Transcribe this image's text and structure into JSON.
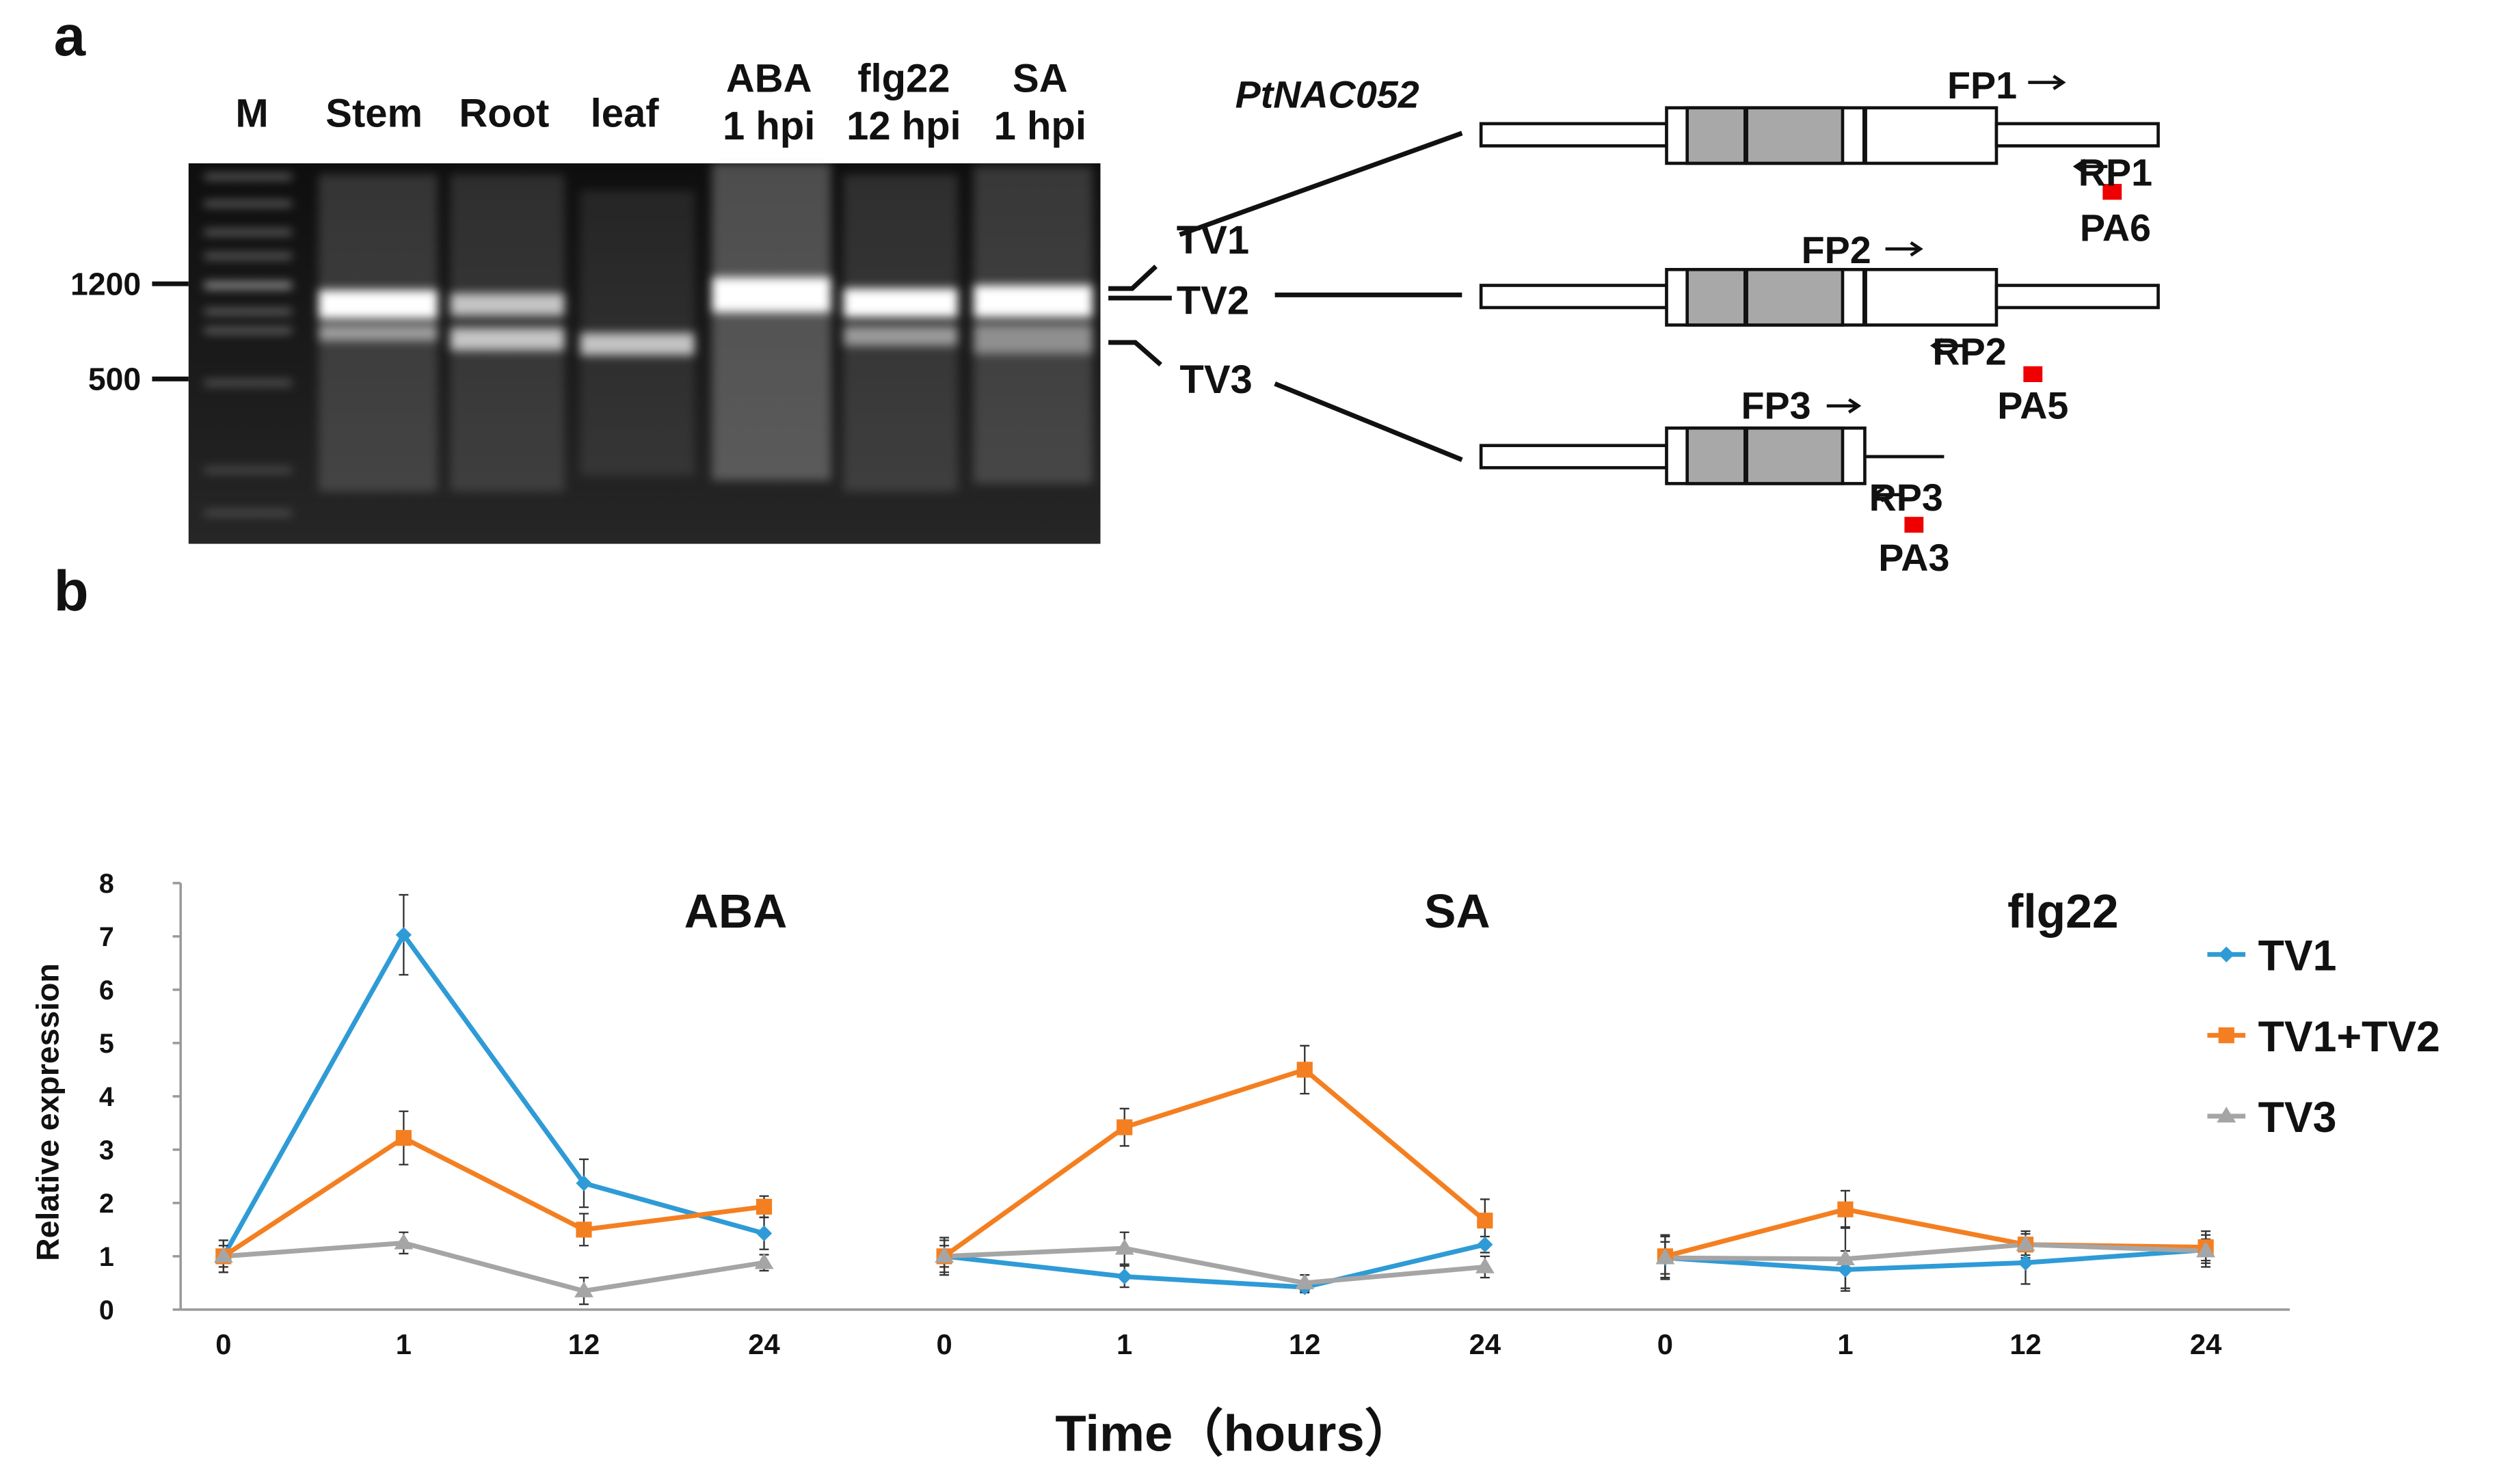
{
  "panel_labels": [
    "a",
    "b"
  ],
  "gel": {
    "lanes": [
      [
        "M"
      ],
      [
        "Stem"
      ],
      [
        "Root"
      ],
      [
        "leaf"
      ],
      [
        "ABA",
        "1 hpi"
      ],
      [
        "flg22",
        "12 hpi"
      ],
      [
        "SA",
        "1 hpi"
      ]
    ],
    "markers": [
      "1200",
      "500"
    ]
  },
  "diagram": {
    "gene": "PtNAC052",
    "transcripts": [
      {
        "label": "TV1",
        "forward": "FP1",
        "reverse": "RP1",
        "polya": "PA6"
      },
      {
        "label": "TV2",
        "forward": "FP2",
        "reverse": "RP2",
        "polya": "PA5"
      },
      {
        "label": "TV3",
        "forward": "FP3",
        "reverse": "RP3",
        "polya": "PA3"
      }
    ]
  },
  "chart_data": {
    "type": "line",
    "ylabel": "Relative expression",
    "xlabel": "Time（hours）",
    "groups": [
      "ABA",
      "SA",
      "flg22"
    ],
    "categories": [
      "0",
      "1",
      "12",
      "24",
      "0",
      "1",
      "12",
      "24",
      "0",
      "1",
      "12",
      "24"
    ],
    "ylim": [
      0,
      8
    ],
    "yticks": [
      0,
      1,
      2,
      3,
      4,
      5,
      6,
      7,
      8
    ],
    "legend": "right",
    "series": [
      {
        "name": "TV1",
        "color": "#2e9bd6",
        "marker": "diamond",
        "values": [
          1,
          7.03,
          2.37,
          1.43,
          1,
          0.62,
          0.42,
          1.22,
          0.97,
          0.75,
          0.88,
          1.12
        ],
        "errors": [
          0.3,
          0.75,
          0.45,
          0.3,
          0.35,
          0.2,
          0.1,
          0.15,
          0.4,
          0.35,
          0.4,
          0.2
        ]
      },
      {
        "name": "TV1+TV2",
        "color": "#f47f20",
        "marker": "square",
        "values": [
          1,
          3.22,
          1.5,
          1.93,
          1,
          3.42,
          4.5,
          1.67,
          1,
          1.88,
          1.22,
          1.17
        ],
        "errors": [
          0.3,
          0.5,
          0.3,
          0.2,
          0.3,
          0.35,
          0.45,
          0.4,
          0.4,
          0.35,
          0.25,
          0.3
        ]
      },
      {
        "name": "TV3",
        "color": "#a5a5a5",
        "marker": "triangle",
        "values": [
          1,
          1.25,
          0.35,
          0.88,
          1,
          1.15,
          0.5,
          0.8,
          0.97,
          0.95,
          1.22,
          1.1
        ],
        "errors": [
          0.2,
          0.2,
          0.25,
          0.15,
          0.2,
          0.3,
          0.15,
          0.2,
          0.3,
          0.6,
          0.2,
          0.3
        ]
      }
    ]
  }
}
